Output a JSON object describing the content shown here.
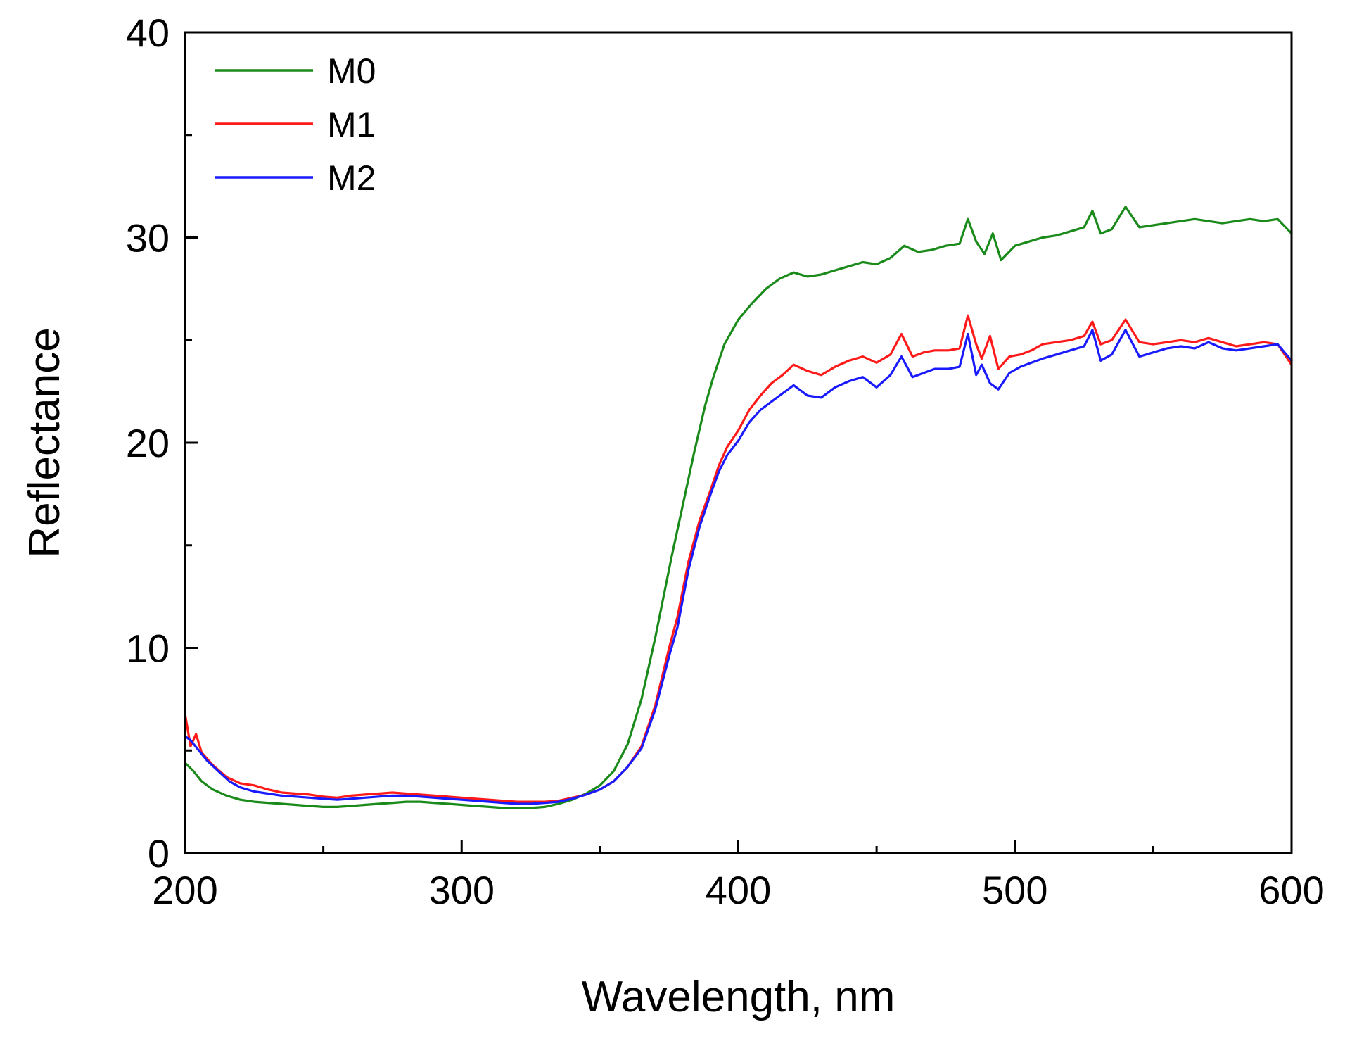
{
  "chart_data": {
    "type": "line",
    "title": "",
    "xlabel": "Wavelength, nm",
    "ylabel": "Reflectance",
    "xlim": [
      200,
      600
    ],
    "ylim": [
      0,
      40
    ],
    "x_major_ticks": [
      200,
      300,
      400,
      500,
      600
    ],
    "x_tick_labels": [
      "200",
      "300",
      "400",
      "500",
      "600"
    ],
    "x_minor_ticks": [
      250,
      350,
      450,
      550
    ],
    "y_major_ticks": [
      0,
      10,
      20,
      30,
      40
    ],
    "y_tick_labels": [
      "0",
      "10",
      "20",
      "30",
      "40"
    ],
    "y_minor_ticks": [
      5,
      15,
      25,
      35
    ],
    "grid": false,
    "legend_position": "top-left",
    "series": [
      {
        "name": "M0",
        "color": "#1a8a1a",
        "points": [
          [
            200,
            4.4
          ],
          [
            203,
            4.0
          ],
          [
            206,
            3.5
          ],
          [
            210,
            3.1
          ],
          [
            215,
            2.8
          ],
          [
            220,
            2.6
          ],
          [
            225,
            2.5
          ],
          [
            230,
            2.45
          ],
          [
            235,
            2.4
          ],
          [
            240,
            2.35
          ],
          [
            245,
            2.3
          ],
          [
            250,
            2.25
          ],
          [
            255,
            2.25
          ],
          [
            260,
            2.3
          ],
          [
            265,
            2.35
          ],
          [
            270,
            2.4
          ],
          [
            275,
            2.45
          ],
          [
            280,
            2.5
          ],
          [
            285,
            2.5
          ],
          [
            290,
            2.45
          ],
          [
            295,
            2.4
          ],
          [
            300,
            2.35
          ],
          [
            305,
            2.3
          ],
          [
            310,
            2.25
          ],
          [
            315,
            2.2
          ],
          [
            320,
            2.2
          ],
          [
            325,
            2.2
          ],
          [
            330,
            2.25
          ],
          [
            335,
            2.4
          ],
          [
            340,
            2.6
          ],
          [
            345,
            2.9
          ],
          [
            350,
            3.3
          ],
          [
            355,
            4.0
          ],
          [
            360,
            5.3
          ],
          [
            365,
            7.5
          ],
          [
            370,
            10.5
          ],
          [
            373,
            12.5
          ],
          [
            376,
            14.5
          ],
          [
            380,
            17.0
          ],
          [
            384,
            19.5
          ],
          [
            388,
            21.8
          ],
          [
            391,
            23.2
          ],
          [
            395,
            24.8
          ],
          [
            400,
            26.0
          ],
          [
            405,
            26.8
          ],
          [
            410,
            27.5
          ],
          [
            415,
            28.0
          ],
          [
            420,
            28.3
          ],
          [
            425,
            28.1
          ],
          [
            430,
            28.2
          ],
          [
            435,
            28.4
          ],
          [
            440,
            28.6
          ],
          [
            445,
            28.8
          ],
          [
            450,
            28.7
          ],
          [
            455,
            29.0
          ],
          [
            460,
            29.6
          ],
          [
            465,
            29.3
          ],
          [
            470,
            29.4
          ],
          [
            475,
            29.6
          ],
          [
            480,
            29.7
          ],
          [
            483,
            30.9
          ],
          [
            486,
            29.8
          ],
          [
            489,
            29.2
          ],
          [
            492,
            30.2
          ],
          [
            495,
            28.9
          ],
          [
            500,
            29.6
          ],
          [
            505,
            29.8
          ],
          [
            510,
            30.0
          ],
          [
            515,
            30.1
          ],
          [
            520,
            30.3
          ],
          [
            525,
            30.5
          ],
          [
            528,
            31.3
          ],
          [
            531,
            30.2
          ],
          [
            535,
            30.4
          ],
          [
            540,
            31.5
          ],
          [
            545,
            30.5
          ],
          [
            550,
            30.6
          ],
          [
            555,
            30.7
          ],
          [
            560,
            30.8
          ],
          [
            565,
            30.9
          ],
          [
            570,
            30.8
          ],
          [
            575,
            30.7
          ],
          [
            580,
            30.8
          ],
          [
            585,
            30.9
          ],
          [
            590,
            30.8
          ],
          [
            595,
            30.9
          ],
          [
            600,
            30.2
          ]
        ]
      },
      {
        "name": "M1",
        "color": "#ff1a1a",
        "points": [
          [
            200,
            6.8
          ],
          [
            202,
            5.2
          ],
          [
            204,
            5.8
          ],
          [
            206,
            4.9
          ],
          [
            210,
            4.3
          ],
          [
            215,
            3.7
          ],
          [
            220,
            3.4
          ],
          [
            225,
            3.3
          ],
          [
            230,
            3.1
          ],
          [
            235,
            2.95
          ],
          [
            240,
            2.9
          ],
          [
            245,
            2.85
          ],
          [
            250,
            2.75
          ],
          [
            255,
            2.7
          ],
          [
            260,
            2.8
          ],
          [
            265,
            2.85
          ],
          [
            270,
            2.9
          ],
          [
            275,
            2.95
          ],
          [
            280,
            2.9
          ],
          [
            285,
            2.85
          ],
          [
            290,
            2.8
          ],
          [
            295,
            2.75
          ],
          [
            300,
            2.7
          ],
          [
            305,
            2.65
          ],
          [
            310,
            2.6
          ],
          [
            315,
            2.55
          ],
          [
            320,
            2.5
          ],
          [
            325,
            2.5
          ],
          [
            330,
            2.5
          ],
          [
            335,
            2.55
          ],
          [
            340,
            2.7
          ],
          [
            345,
            2.85
          ],
          [
            350,
            3.1
          ],
          [
            355,
            3.5
          ],
          [
            360,
            4.2
          ],
          [
            365,
            5.2
          ],
          [
            370,
            7.2
          ],
          [
            375,
            10.0
          ],
          [
            378,
            11.5
          ],
          [
            382,
            14.2
          ],
          [
            386,
            16.2
          ],
          [
            390,
            17.7
          ],
          [
            393,
            18.9
          ],
          [
            396,
            19.8
          ],
          [
            400,
            20.6
          ],
          [
            404,
            21.6
          ],
          [
            408,
            22.3
          ],
          [
            412,
            22.9
          ],
          [
            416,
            23.3
          ],
          [
            420,
            23.8
          ],
          [
            425,
            23.5
          ],
          [
            430,
            23.3
          ],
          [
            435,
            23.7
          ],
          [
            440,
            24.0
          ],
          [
            445,
            24.2
          ],
          [
            450,
            23.9
          ],
          [
            455,
            24.3
          ],
          [
            459,
            25.3
          ],
          [
            463,
            24.2
          ],
          [
            467,
            24.4
          ],
          [
            471,
            24.5
          ],
          [
            476,
            24.5
          ],
          [
            480,
            24.6
          ],
          [
            483,
            26.2
          ],
          [
            486,
            24.8
          ],
          [
            488,
            24.1
          ],
          [
            491,
            25.2
          ],
          [
            494,
            23.6
          ],
          [
            498,
            24.2
          ],
          [
            502,
            24.3
          ],
          [
            506,
            24.5
          ],
          [
            510,
            24.8
          ],
          [
            515,
            24.9
          ],
          [
            520,
            25.0
          ],
          [
            525,
            25.2
          ],
          [
            528,
            25.9
          ],
          [
            531,
            24.8
          ],
          [
            535,
            25.0
          ],
          [
            540,
            26.0
          ],
          [
            545,
            24.9
          ],
          [
            550,
            24.8
          ],
          [
            555,
            24.9
          ],
          [
            560,
            25.0
          ],
          [
            565,
            24.9
          ],
          [
            570,
            25.1
          ],
          [
            575,
            24.9
          ],
          [
            580,
            24.7
          ],
          [
            585,
            24.8
          ],
          [
            590,
            24.9
          ],
          [
            595,
            24.8
          ],
          [
            600,
            23.8
          ]
        ]
      },
      {
        "name": "M2",
        "color": "#1a1aff",
        "points": [
          [
            200,
            5.7
          ],
          [
            202,
            5.5
          ],
          [
            205,
            5.0
          ],
          [
            208,
            4.5
          ],
          [
            212,
            4.0
          ],
          [
            216,
            3.5
          ],
          [
            220,
            3.2
          ],
          [
            225,
            3.0
          ],
          [
            230,
            2.9
          ],
          [
            235,
            2.8
          ],
          [
            240,
            2.75
          ],
          [
            245,
            2.7
          ],
          [
            250,
            2.65
          ],
          [
            255,
            2.6
          ],
          [
            260,
            2.65
          ],
          [
            265,
            2.7
          ],
          [
            270,
            2.75
          ],
          [
            275,
            2.8
          ],
          [
            280,
            2.8
          ],
          [
            285,
            2.75
          ],
          [
            290,
            2.7
          ],
          [
            295,
            2.65
          ],
          [
            300,
            2.6
          ],
          [
            305,
            2.55
          ],
          [
            310,
            2.5
          ],
          [
            315,
            2.45
          ],
          [
            320,
            2.4
          ],
          [
            325,
            2.4
          ],
          [
            330,
            2.45
          ],
          [
            335,
            2.5
          ],
          [
            340,
            2.65
          ],
          [
            345,
            2.85
          ],
          [
            350,
            3.1
          ],
          [
            355,
            3.5
          ],
          [
            360,
            4.2
          ],
          [
            365,
            5.1
          ],
          [
            370,
            7.0
          ],
          [
            375,
            9.6
          ],
          [
            378,
            11.0
          ],
          [
            382,
            13.8
          ],
          [
            386,
            15.9
          ],
          [
            390,
            17.5
          ],
          [
            393,
            18.6
          ],
          [
            396,
            19.4
          ],
          [
            400,
            20.1
          ],
          [
            404,
            21.0
          ],
          [
            408,
            21.6
          ],
          [
            412,
            22.0
          ],
          [
            416,
            22.4
          ],
          [
            420,
            22.8
          ],
          [
            425,
            22.3
          ],
          [
            430,
            22.2
          ],
          [
            435,
            22.7
          ],
          [
            440,
            23.0
          ],
          [
            445,
            23.2
          ],
          [
            450,
            22.7
          ],
          [
            455,
            23.3
          ],
          [
            459,
            24.2
          ],
          [
            463,
            23.2
          ],
          [
            467,
            23.4
          ],
          [
            471,
            23.6
          ],
          [
            476,
            23.6
          ],
          [
            480,
            23.7
          ],
          [
            483,
            25.3
          ],
          [
            486,
            23.3
          ],
          [
            488,
            23.8
          ],
          [
            491,
            22.9
          ],
          [
            494,
            22.6
          ],
          [
            498,
            23.4
          ],
          [
            502,
            23.7
          ],
          [
            506,
            23.9
          ],
          [
            510,
            24.1
          ],
          [
            515,
            24.3
          ],
          [
            520,
            24.5
          ],
          [
            525,
            24.7
          ],
          [
            528,
            25.5
          ],
          [
            531,
            24.0
          ],
          [
            535,
            24.3
          ],
          [
            540,
            25.5
          ],
          [
            545,
            24.2
          ],
          [
            550,
            24.4
          ],
          [
            555,
            24.6
          ],
          [
            560,
            24.7
          ],
          [
            565,
            24.6
          ],
          [
            570,
            24.9
          ],
          [
            575,
            24.6
          ],
          [
            580,
            24.5
          ],
          [
            585,
            24.6
          ],
          [
            590,
            24.7
          ],
          [
            595,
            24.8
          ],
          [
            600,
            24.0
          ]
        ]
      }
    ]
  }
}
